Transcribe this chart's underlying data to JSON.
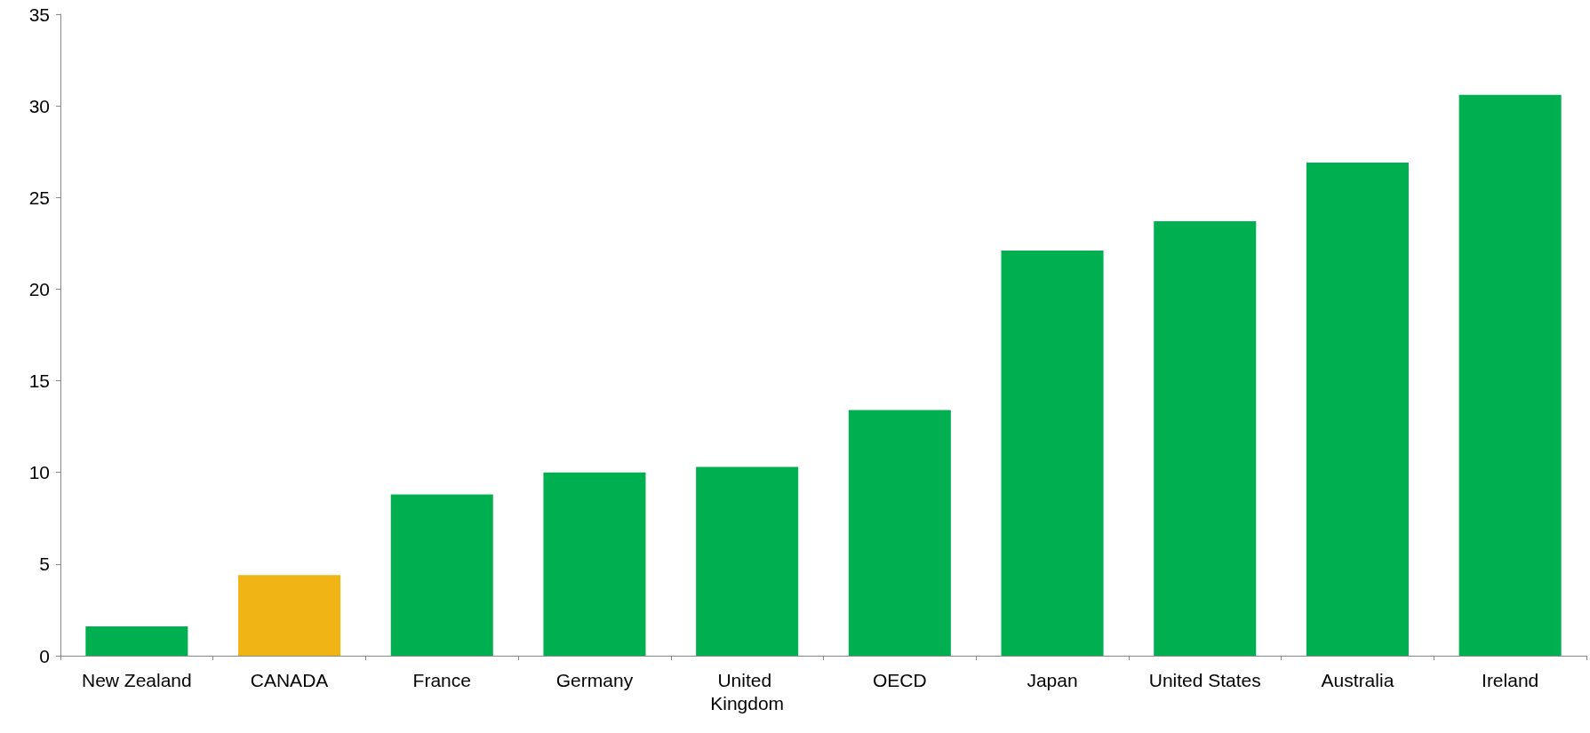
{
  "chart_data": {
    "type": "bar",
    "categories": [
      "New Zealand",
      "CANADA",
      "France",
      "Germany",
      "United Kingdom",
      "OECD",
      "Japan",
      "United States",
      "Australia",
      "Ireland"
    ],
    "values": [
      1.6,
      4.4,
      8.8,
      10.0,
      10.3,
      13.4,
      22.1,
      23.7,
      26.9,
      30.6
    ],
    "colors": [
      "#00b050",
      "#f0b414",
      "#00b050",
      "#00b050",
      "#00b050",
      "#00b050",
      "#00b050",
      "#00b050",
      "#00b050",
      "#00b050"
    ],
    "ylim": [
      0,
      35
    ],
    "yticks": [
      0,
      5,
      10,
      15,
      20,
      25,
      30,
      35
    ],
    "grid": false
  }
}
